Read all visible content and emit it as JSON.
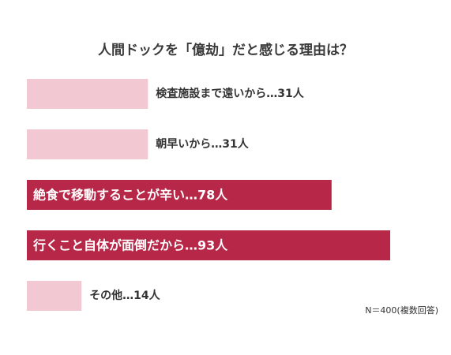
{
  "chart_data": {
    "type": "bar",
    "orientation": "horizontal",
    "title": "人間ドックを「億劫」だと感じる理由は？",
    "note": "N＝400(複数回答)",
    "series": [
      {
        "values": [
          31,
          31,
          78,
          93,
          14
        ]
      }
    ],
    "categories": [
      "検査施設まで遠いから",
      "朝早いから",
      "絶食で移動することが辛い",
      "行くこと自体が面倒だから",
      "その他"
    ],
    "value_unit": "人",
    "labels": [
      "検査施設まで遠いから…31人",
      "朝早いから…31人",
      "絶食で移動することが辛い…78人",
      "行くこと自体が面倒だから…93人",
      "その他…14人"
    ],
    "highlighted": [
      false,
      false,
      true,
      true,
      false
    ],
    "colors": {
      "normal": "#f2c8d3",
      "highlight": "#b72747"
    },
    "grid": false
  }
}
